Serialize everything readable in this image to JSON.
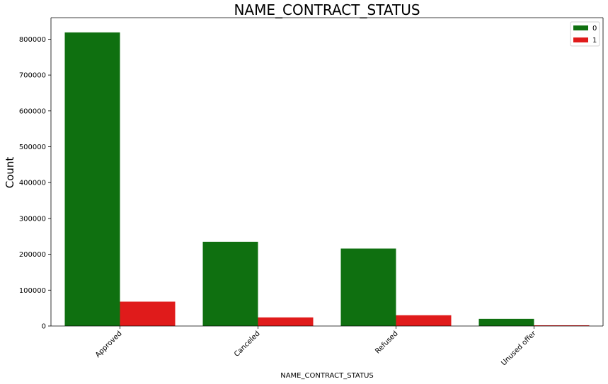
{
  "chart_data": {
    "type": "bar",
    "title": "NAME_CONTRACT_STATUS",
    "xlabel": "NAME_CONTRACT_STATUS",
    "ylabel": "Count",
    "categories": [
      "Approved",
      "Canceled",
      "Refused",
      "Unused offer"
    ],
    "series": [
      {
        "name": "0",
        "color": "#0f7010",
        "values": [
          819000,
          235000,
          216000,
          20000
        ]
      },
      {
        "name": "1",
        "color": "#e01b1b",
        "values": [
          68000,
          24000,
          30000,
          2000
        ]
      }
    ],
    "ylim": [
      0,
      860000
    ],
    "yticks": [
      0,
      100000,
      200000,
      300000,
      400000,
      500000,
      600000,
      700000,
      800000
    ],
    "ytick_labels": [
      "0",
      "100000",
      "200000",
      "300000",
      "400000",
      "500000",
      "600000",
      "700000",
      "800000"
    ],
    "legend_placement": "top-right",
    "grid": false
  }
}
